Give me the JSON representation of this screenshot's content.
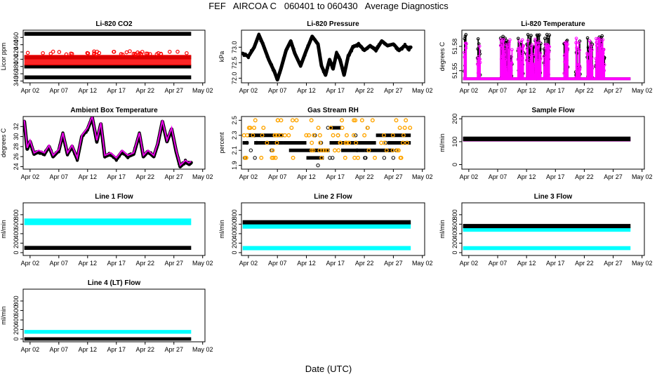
{
  "page": {
    "title": "FEF   AIRCOA C   060401 to 060430   Average Diagnostics",
    "xlabel": "Date (UTC)"
  },
  "colors": {
    "black": "#000000",
    "red": "#ff0000",
    "magenta": "#ff00ff",
    "orange": "#ffa500",
    "cyan": "#00ffff",
    "green": "#00aa00"
  },
  "x_axis": {
    "ticks": [
      "Apr 02",
      "Apr 07",
      "Apr 12",
      "Apr 17",
      "Apr 22",
      "Apr 27",
      "May 02"
    ],
    "tick_days": [
      2,
      7,
      12,
      17,
      22,
      27,
      32
    ],
    "xlim": [
      0.8,
      32.4
    ]
  },
  "chart_data": [
    {
      "id": "co2",
      "type": "scatter",
      "title": "Li-820 CO2",
      "ylabel": "Licor ppm",
      "ylim": [
        335,
        480
      ],
      "yticks": [
        340,
        360,
        380,
        400,
        420,
        440,
        460
      ],
      "x_range": [
        1,
        30
      ],
      "series": [
        {
          "color": "black",
          "kind": "band",
          "center": 470,
          "spread": 1.5
        },
        {
          "color": "black",
          "kind": "band",
          "center": 405,
          "spread": 1.5
        },
        {
          "color": "black",
          "kind": "band",
          "center": 380,
          "spread": 1.5
        },
        {
          "color": "black",
          "kind": "band",
          "center": 350,
          "spread": 1.5
        },
        {
          "color": "red",
          "kind": "scatter",
          "range": [
            383,
            412
          ],
          "outliers": [
            418,
            420,
            416
          ]
        }
      ]
    },
    {
      "id": "pressure",
      "type": "line",
      "title": "Li-820 Pressure",
      "ylabel": "kPa",
      "ylim": [
        71.85,
        73.55
      ],
      "yticks": [
        72.0,
        72.5,
        73.0
      ],
      "x_range": [
        1,
        30
      ],
      "series": [
        {
          "color": "black",
          "kind": "line",
          "keypoints": [
            [
              1,
              72.8
            ],
            [
              2,
              72.7
            ],
            [
              3,
              73.0
            ],
            [
              3.8,
              73.4
            ],
            [
              4.5,
              73.1
            ],
            [
              5.5,
              72.6
            ],
            [
              6.5,
              72.2
            ],
            [
              7,
              71.95
            ],
            [
              7.6,
              72.3
            ],
            [
              8.5,
              72.9
            ],
            [
              9.3,
              73.2
            ],
            [
              10,
              72.8
            ],
            [
              11,
              72.4
            ],
            [
              12,
              72.9
            ],
            [
              13,
              73.35
            ],
            [
              14,
              73.1
            ],
            [
              14.6,
              72.4
            ],
            [
              15.3,
              72.1
            ],
            [
              16,
              72.6
            ],
            [
              16.6,
              72.3
            ],
            [
              17.2,
              72.8
            ],
            [
              17.8,
              72.6
            ],
            [
              18.5,
              72.1
            ],
            [
              19.2,
              72.7
            ],
            [
              20,
              73.0
            ],
            [
              21,
              73.1
            ],
            [
              22,
              72.9
            ],
            [
              23,
              73.05
            ],
            [
              24,
              72.9
            ],
            [
              25,
              73.2
            ],
            [
              26,
              73.05
            ],
            [
              27,
              73.1
            ],
            [
              28,
              72.9
            ],
            [
              29,
              73.05
            ],
            [
              29.7,
              72.95
            ],
            [
              30,
              73.0
            ]
          ]
        }
      ]
    },
    {
      "id": "licor-temp",
      "type": "scatter",
      "title": "Li-820 Temperature",
      "ylabel": "degrees C",
      "ylim": [
        51.535,
        51.6
      ],
      "yticks": [
        51.55,
        51.58
      ],
      "x_range": [
        1,
        30
      ],
      "series": [
        {
          "color": "black",
          "kind": "spiky",
          "base": 51.54,
          "peak": 51.595
        },
        {
          "color": "magenta",
          "kind": "spiky",
          "base": 51.54,
          "peak": 51.59
        }
      ]
    },
    {
      "id": "box-temp",
      "type": "line",
      "title": "Ambient Box Temperature",
      "ylabel": "degrees C",
      "ylim": [
        23.5,
        34.0
      ],
      "yticks": [
        24,
        26,
        28,
        30,
        32
      ],
      "x_range": [
        1,
        30
      ],
      "series": [
        {
          "color": "black",
          "kind": "line",
          "keypoints": [
            [
              1,
              33.0
            ],
            [
              1.5,
              27.5
            ],
            [
              2,
              29.0
            ],
            [
              2.7,
              26.5
            ],
            [
              3.5,
              27.0
            ],
            [
              4.5,
              26.5
            ],
            [
              5.3,
              28.0
            ],
            [
              6,
              26.0
            ],
            [
              7,
              27.2
            ],
            [
              7.7,
              30.5
            ],
            [
              8.5,
              26.5
            ],
            [
              9.3,
              28.0
            ],
            [
              10.2,
              25.5
            ],
            [
              11,
              30.0
            ],
            [
              12,
              31.5
            ],
            [
              12.8,
              33.8
            ],
            [
              13.6,
              29.0
            ],
            [
              14.3,
              32.5
            ],
            [
              15,
              26.0
            ],
            [
              16,
              26.5
            ],
            [
              17,
              25.5
            ],
            [
              18,
              27.0
            ],
            [
              19,
              26.0
            ],
            [
              20,
              26.5
            ],
            [
              21,
              30.5
            ],
            [
              21.7,
              26.0
            ],
            [
              22.5,
              27.0
            ],
            [
              23.5,
              26.0
            ],
            [
              24.2,
              28.5
            ],
            [
              25,
              33.0
            ],
            [
              25.8,
              29.0
            ],
            [
              26.6,
              31.5
            ],
            [
              27.4,
              27.0
            ],
            [
              28.1,
              24.0
            ],
            [
              29,
              25.0
            ],
            [
              29.6,
              24.5
            ],
            [
              30,
              24.8
            ]
          ]
        },
        {
          "color": "magenta",
          "kind": "shadow"
        }
      ]
    },
    {
      "id": "rh",
      "type": "scatter",
      "title": "Gas Stream RH",
      "ylabel": "percent",
      "ylim": [
        1.85,
        2.55
      ],
      "yticks": [
        1.9,
        2.1,
        2.3,
        2.5
      ],
      "x_range": [
        1,
        30
      ],
      "series": [
        {
          "color": "black",
          "kind": "levels",
          "levels": [
            2.0,
            2.1,
            2.2,
            2.3,
            2.4
          ],
          "step": 0.1
        },
        {
          "color": "orange",
          "kind": "levels-sparse",
          "levels": [
            2.0,
            2.1,
            2.2,
            2.3,
            2.4,
            2.5
          ],
          "step": 0.1
        }
      ]
    },
    {
      "id": "sample-flow",
      "type": "line",
      "title": "Sample Flow",
      "ylabel": "ml/min",
      "ylim": [
        -20,
        210
      ],
      "yticks": [
        0,
        100,
        200
      ],
      "x_range": [
        1,
        30
      ],
      "series": [
        {
          "color": "magenta",
          "kind": "band",
          "center": 110,
          "spread": 3
        },
        {
          "color": "black",
          "kind": "band",
          "center": 112,
          "spread": 4
        }
      ]
    },
    {
      "id": "line1",
      "type": "scatter",
      "title": "Line 1 Flow",
      "ylabel": "ml/min",
      "ylim": [
        -60,
        1050
      ],
      "yticks": [
        0,
        200,
        400,
        600,
        800
      ],
      "x_range": [
        1,
        30
      ],
      "series": [
        {
          "color": "cyan",
          "kind": "band",
          "center": 650,
          "spread": 40
        },
        {
          "color": "black",
          "kind": "band",
          "center": 100,
          "spread": 12
        }
      ]
    },
    {
      "id": "line2",
      "type": "scatter",
      "title": "Line 2 Flow",
      "ylabel": "ml/min",
      "ylim": [
        -60,
        1050
      ],
      "yticks": [
        0,
        200,
        400,
        600,
        800
      ],
      "x_range": [
        1,
        30
      ],
      "series": [
        {
          "color": "cyan",
          "kind": "band",
          "center": 560,
          "spread": 25
        },
        {
          "color": "cyan",
          "kind": "band",
          "center": 95,
          "spread": 15
        },
        {
          "color": "black",
          "kind": "band",
          "center": 640,
          "spread": 15
        }
      ]
    },
    {
      "id": "line3",
      "type": "scatter",
      "title": "Line 3 Flow",
      "ylabel": "ml/min",
      "ylim": [
        -60,
        1050
      ],
      "yticks": [
        0,
        200,
        400,
        600,
        800
      ],
      "x_range": [
        1,
        30
      ],
      "series": [
        {
          "color": "cyan",
          "kind": "band",
          "center": 490,
          "spread": 20
        },
        {
          "color": "cyan",
          "kind": "band",
          "center": 95,
          "spread": 12
        },
        {
          "color": "black",
          "kind": "band",
          "center": 560,
          "spread": 15
        }
      ]
    },
    {
      "id": "line4",
      "type": "scatter",
      "title": "Line 4 (LT) Flow",
      "ylabel": "ml/min",
      "ylim": [
        -60,
        1050
      ],
      "yticks": [
        0,
        200,
        400,
        600,
        800
      ],
      "x_range": [
        1,
        30
      ],
      "series": [
        {
          "color": "cyan",
          "kind": "band",
          "center": 150,
          "spread": 10
        },
        {
          "color": "black",
          "kind": "band",
          "center": 0,
          "spread": 6
        }
      ]
    }
  ]
}
